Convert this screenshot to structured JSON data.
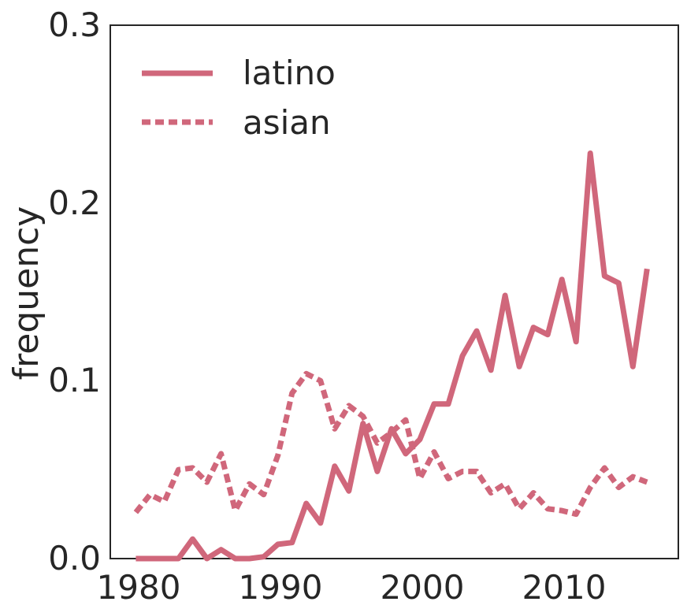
{
  "chart_data": {
    "type": "line",
    "xlabel": "",
    "ylabel": "frequency",
    "xlim": [
      1978.2,
      2018.2
    ],
    "ylim": [
      0,
      0.3
    ],
    "x_ticks": [
      1980,
      1990,
      2000,
      2010
    ],
    "y_ticks": [
      0.0,
      0.1,
      0.2,
      0.3
    ],
    "x_tick_labels": [
      "1980",
      "1990",
      "2000",
      "2010"
    ],
    "y_tick_labels": [
      "0.0",
      "0.1",
      "0.2",
      "0.3"
    ],
    "grid": false,
    "legend_position": "top-left",
    "line_color": "#d0677b",
    "x": [
      1980,
      1981,
      1982,
      1983,
      1984,
      1985,
      1986,
      1987,
      1988,
      1989,
      1990,
      1991,
      1992,
      1993,
      1994,
      1995,
      1996,
      1997,
      1998,
      1999,
      2000,
      2001,
      2002,
      2003,
      2004,
      2005,
      2006,
      2007,
      2008,
      2009,
      2010,
      2011,
      2012,
      2013,
      2014,
      2015,
      2016
    ],
    "series": [
      {
        "name": "latino",
        "style": "solid",
        "values": [
          0.0,
          0.0,
          0.0,
          0.0,
          0.011,
          0.0,
          0.005,
          0.0,
          0.0,
          0.001,
          0.008,
          0.009,
          0.031,
          0.02,
          0.052,
          0.038,
          0.076,
          0.049,
          0.073,
          0.059,
          0.067,
          0.087,
          0.087,
          0.114,
          0.128,
          0.106,
          0.148,
          0.108,
          0.13,
          0.126,
          0.157,
          0.122,
          0.228,
          0.159,
          0.155,
          0.108,
          0.163
        ]
      },
      {
        "name": "asian",
        "style": "dashed",
        "values": [
          0.026,
          0.036,
          0.032,
          0.05,
          0.051,
          0.043,
          0.059,
          0.027,
          0.042,
          0.036,
          0.058,
          0.093,
          0.104,
          0.1,
          0.073,
          0.086,
          0.08,
          0.065,
          0.071,
          0.078,
          0.045,
          0.06,
          0.045,
          0.049,
          0.049,
          0.037,
          0.042,
          0.028,
          0.037,
          0.028,
          0.027,
          0.025,
          0.04,
          0.051,
          0.04,
          0.046,
          0.043
        ]
      }
    ]
  }
}
